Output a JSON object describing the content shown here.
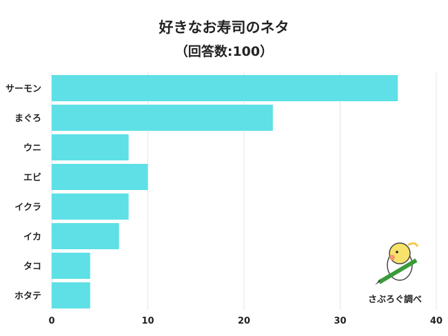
{
  "chart_data": {
    "type": "bar",
    "orientation": "horizontal",
    "title": "好きなお寿司のネタ",
    "subtitle": "（回答数:100）",
    "categories": [
      "サーモン",
      "まぐろ",
      "ウニ",
      "エビ",
      "イクラ",
      "イカ",
      "タコ",
      "ホタテ"
    ],
    "values": [
      36,
      23,
      8,
      10,
      8,
      7,
      4,
      4
    ],
    "xlim": [
      0,
      40
    ],
    "xticks": [
      0,
      10,
      20,
      30,
      40
    ],
    "grid": true,
    "bar_color": "#5ee0e6",
    "xlabel": "",
    "ylabel": ""
  },
  "logo": {
    "text": "さぶろぐ調べ"
  }
}
